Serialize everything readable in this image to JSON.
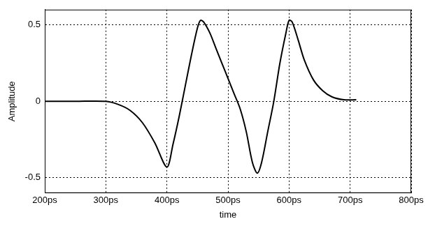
{
  "chart_data": {
    "type": "line",
    "x_label": "time",
    "y_label": "Amplitude",
    "x": [
      200,
      250,
      300,
      320,
      340,
      360,
      380,
      400,
      410,
      420,
      430,
      440,
      450,
      455,
      460,
      470,
      480,
      490,
      500,
      510,
      520,
      530,
      540,
      548,
      555,
      565,
      575,
      585,
      595,
      600,
      605,
      615,
      625,
      640,
      655,
      670,
      690,
      710
    ],
    "values": [
      0.0,
      0.0,
      0.0,
      -0.02,
      -0.06,
      -0.14,
      -0.27,
      -0.43,
      -0.28,
      -0.1,
      0.1,
      0.3,
      0.48,
      0.53,
      0.52,
      0.45,
      0.35,
      0.25,
      0.15,
      0.05,
      -0.05,
      -0.2,
      -0.4,
      -0.47,
      -0.4,
      -0.2,
      0.0,
      0.25,
      0.45,
      0.53,
      0.52,
      0.4,
      0.27,
      0.14,
      0.07,
      0.03,
      0.01,
      0.01
    ],
    "color": "#000000",
    "marker": "none",
    "line_style": "solid",
    "xlim": [
      200,
      800
    ],
    "xticks": [
      {
        "value": 200,
        "label": "200ps"
      },
      {
        "value": 300,
        "label": "300ps"
      },
      {
        "value": 400,
        "label": "400ps"
      },
      {
        "value": 500,
        "label": "500ps"
      },
      {
        "value": 600,
        "label": "600ps"
      },
      {
        "value": 700,
        "label": "700ps"
      },
      {
        "value": 800,
        "label": "800ps"
      }
    ],
    "ylim": [
      -0.6,
      0.6
    ],
    "yticks": [
      -0.5,
      0,
      0.5
    ],
    "grid": true
  }
}
